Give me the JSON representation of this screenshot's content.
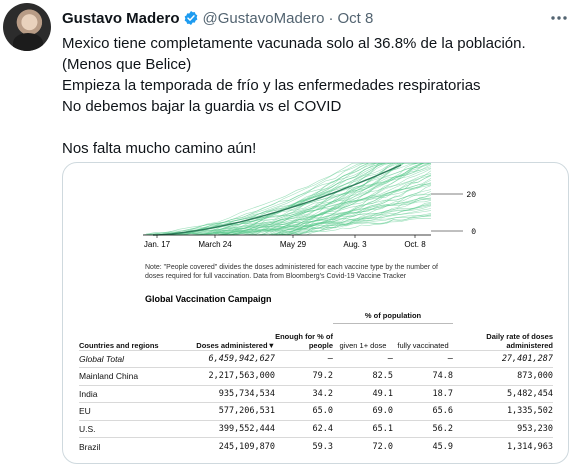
{
  "tweet": {
    "author_name": "Gustavo Madero",
    "handle": "@GustavoMadero",
    "separator": "·",
    "date": "Oct 8",
    "lines": [
      "Mexico tiene completamente vacunada solo al 36.8% de la población.",
      "(Menos que Belice)",
      "Empieza la temporada de frío y las enfermedades respiratorias",
      "No debemos bajar la guardia vs el COVID",
      "",
      "Nos falta mucho camino aún!"
    ]
  },
  "icons": {
    "verified": "verified-badge-icon",
    "more": "more-options-icon",
    "verified_color": "#1d9bf0"
  },
  "chart_data": {
    "type": "line",
    "x_tick_labels": [
      "Jan. 17",
      "March 24",
      "May 29",
      "Aug. 3",
      "Oct. 8"
    ],
    "y_tick_labels": [
      "20",
      "0"
    ],
    "ylim": [
      0,
      40
    ],
    "highlight_color": "#2e7d5b",
    "bundle_color": "#58c98a",
    "note": "Note: \"People covered\" divides the doses administered for each vaccine type by the number of doses required for full vaccination. Data from Bloomberg's Covid-19 Vaccine Tracker"
  },
  "table": {
    "title": "Global Vaccination Campaign",
    "pop_group_header": "% of population",
    "headers": {
      "country": "Countries and regions",
      "doses": "Doses administered",
      "doses_sort_marker": "▼",
      "enough": "Enough for % of people",
      "given": "given 1+ dose",
      "fully": "fully vaccinated",
      "daily": "Daily rate of doses administered"
    },
    "rows": [
      {
        "country": "Global Total",
        "doses": "6,459,942,627",
        "enough": "–",
        "given": "–",
        "fully": "–",
        "daily": "27,401,287"
      },
      {
        "country": "Mainland China",
        "doses": "2,217,563,000",
        "enough": "79.2",
        "given": "82.5",
        "fully": "74.8",
        "daily": "873,000"
      },
      {
        "country": "India",
        "doses": "935,734,534",
        "enough": "34.2",
        "given": "49.1",
        "fully": "18.7",
        "daily": "5,482,454"
      },
      {
        "country": "EU",
        "doses": "577,206,531",
        "enough": "65.0",
        "given": "69.0",
        "fully": "65.6",
        "daily": "1,335,502"
      },
      {
        "country": "U.S.",
        "doses": "399,552,444",
        "enough": "62.4",
        "given": "65.1",
        "fully": "56.2",
        "daily": "953,230"
      },
      {
        "country": "Brazil",
        "doses": "245,109,870",
        "enough": "59.3",
        "given": "72.0",
        "fully": "45.9",
        "daily": "1,314,963"
      }
    ]
  }
}
